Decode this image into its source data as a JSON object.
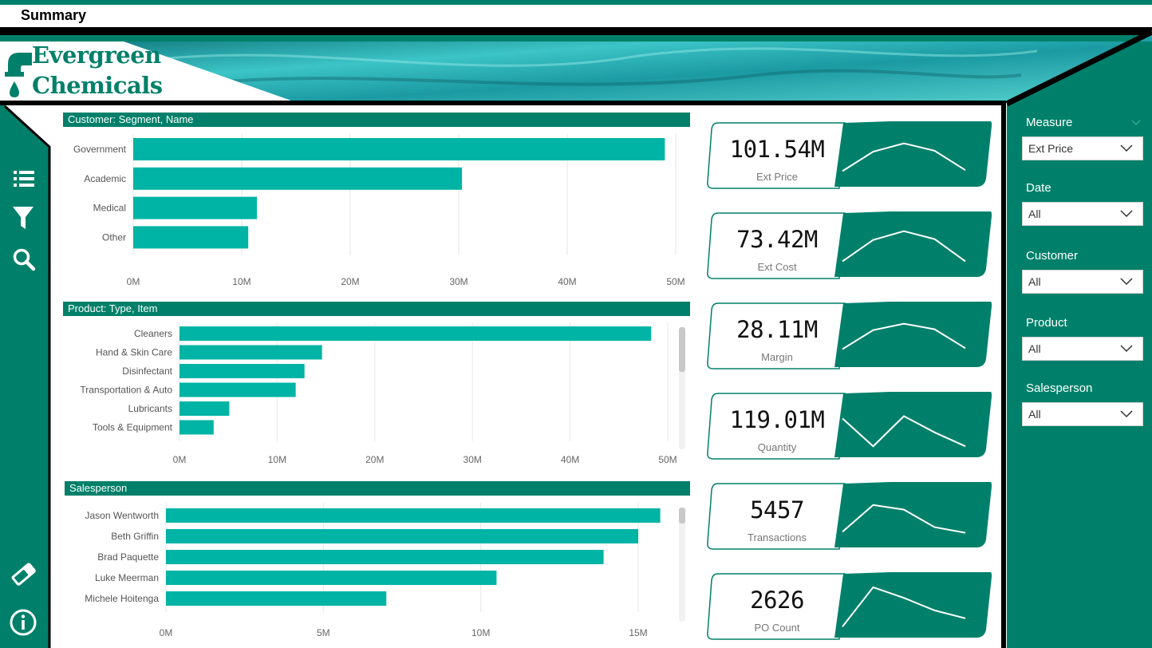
{
  "title": "Summary",
  "logo": {
    "line1": "Evergreen",
    "line2": "Chemicals"
  },
  "colors": {
    "accent": "#00806a",
    "bar": "#00b4a5",
    "dark": "#000000"
  },
  "nav": [
    {
      "icon": "list-icon"
    },
    {
      "icon": "filter-icon"
    },
    {
      "icon": "search-icon"
    },
    {
      "icon": "eraser-icon"
    },
    {
      "icon": "info-icon"
    }
  ],
  "charts": [
    {
      "title": "Customer: Segment, Name",
      "chart_data": {
        "type": "bar",
        "orientation": "horizontal",
        "categories": [
          "Government",
          "Academic",
          "Medical",
          "Other"
        ],
        "values": [
          49,
          30.3,
          11.4,
          10.6
        ],
        "xlim": [
          0,
          50
        ],
        "ticks": [
          "0M",
          "10M",
          "20M",
          "30M",
          "40M",
          "50M"
        ],
        "grid": true
      }
    },
    {
      "title": "Product: Type, Item",
      "chart_data": {
        "type": "bar",
        "orientation": "horizontal",
        "categories": [
          "Cleaners",
          "Hand & Skin Care",
          "Disinfectant",
          "Transportation & Auto",
          "Lubricants",
          "Tools & Equipment"
        ],
        "values": [
          48.3,
          14.6,
          12.8,
          11.9,
          5.1,
          3.5
        ],
        "xlim": [
          0,
          50
        ],
        "ticks": [
          "0M",
          "10M",
          "20M",
          "30M",
          "40M",
          "50M"
        ],
        "grid": true
      }
    },
    {
      "title": "Salesperson",
      "chart_data": {
        "type": "bar",
        "orientation": "horizontal",
        "categories": [
          "Jason Wentworth",
          "Beth Griffin",
          "Brad Paquette",
          "Luke Meerman",
          "Michele Hoitenga"
        ],
        "values": [
          15.7,
          15,
          13.9,
          10.5,
          7
        ],
        "xlim": [
          0,
          15
        ],
        "ticks": [
          "0M",
          "5M",
          "10M",
          "15M"
        ],
        "grid": true
      }
    }
  ],
  "kpis": [
    {
      "value": "101.54M",
      "label": "Ext Price",
      "trend": [
        20,
        62,
        80,
        64,
        22
      ]
    },
    {
      "value": "73.42M",
      "label": "Ext Cost",
      "trend": [
        20,
        66,
        85,
        68,
        20
      ]
    },
    {
      "value": "28.11M",
      "label": "Margin",
      "trend": [
        25,
        66,
        80,
        68,
        27
      ]
    },
    {
      "value": "119.01M",
      "label": "Quantity",
      "trend": [
        70,
        10,
        75,
        40,
        10
      ]
    },
    {
      "value": "5457",
      "label": "Transactions",
      "trend": [
        20,
        78,
        68,
        30,
        18
      ]
    },
    {
      "value": "2626",
      "label": "PO Count",
      "trend": [
        10,
        95,
        72,
        45,
        28
      ]
    }
  ],
  "filters": [
    {
      "label": "Measure",
      "value": "Ext Price"
    },
    {
      "label": "Date",
      "value": "All"
    },
    {
      "label": "Customer",
      "value": "All"
    },
    {
      "label": "Product",
      "value": "All"
    },
    {
      "label": "Salesperson",
      "value": "All"
    }
  ]
}
